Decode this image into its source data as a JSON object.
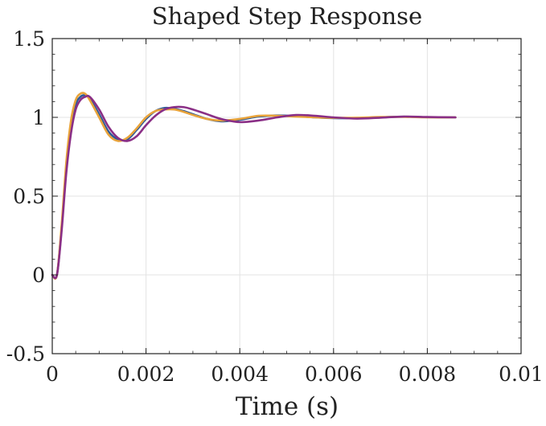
{
  "chart_data": {
    "type": "line",
    "title": "Shaped Step Response",
    "xlabel": "Time (s)",
    "ylabel": "",
    "xlim": [
      0,
      0.01
    ],
    "ylim": [
      -0.5,
      1.5
    ],
    "grid": true,
    "x_ticks": [
      0,
      0.002,
      0.004,
      0.006,
      0.008,
      0.01
    ],
    "x_tick_labels": [
      "0",
      "0.002",
      "0.004",
      "0.006",
      "0.008",
      "0.01"
    ],
    "y_ticks": [
      -0.5,
      0,
      0.5,
      1,
      1.5
    ],
    "y_tick_labels": [
      "-0.5",
      "0",
      "0.5",
      "1",
      "1.5"
    ],
    "series": [
      {
        "color": "#2e5a97",
        "x": [
          0,
          0.0001,
          0.0002,
          0.0003,
          0.0004,
          0.0005,
          0.0006,
          0.0007,
          0.0008,
          0.001,
          0.0012,
          0.0014,
          0.0016,
          0.0018,
          0.002,
          0.0022,
          0.0024,
          0.0026,
          0.0028,
          0.003,
          0.0033,
          0.0036,
          0.004,
          0.0044,
          0.0048,
          0.0052,
          0.0056,
          0.006,
          0.0065,
          0.007,
          0.0075,
          0.008,
          0.0086
        ],
        "y": [
          0,
          0,
          0.3,
          0.68,
          0.93,
          1.08,
          1.13,
          1.14,
          1.12,
          1.02,
          0.91,
          0.86,
          0.86,
          0.92,
          0.99,
          1.04,
          1.06,
          1.055,
          1.04,
          1.02,
          0.99,
          0.975,
          0.985,
          1.005,
          1.012,
          1.008,
          1.0,
          0.995,
          0.995,
          1.0,
          1.004,
          1.001,
          1.0
        ]
      },
      {
        "color": "#e8a33a",
        "x": [
          0,
          0.0001,
          0.0002,
          0.0003,
          0.0004,
          0.0005,
          0.0006,
          0.0007,
          0.0008,
          0.001,
          0.0012,
          0.0014,
          0.0016,
          0.0018,
          0.002,
          0.0022,
          0.0024,
          0.0026,
          0.0028,
          0.003,
          0.0033,
          0.0036,
          0.004,
          0.0044,
          0.0048,
          0.0052,
          0.0056,
          0.006,
          0.0065,
          0.007,
          0.0075,
          0.008,
          0.0086
        ],
        "y": [
          0,
          0,
          0.32,
          0.72,
          0.98,
          1.11,
          1.15,
          1.15,
          1.11,
          1.0,
          0.89,
          0.85,
          0.87,
          0.93,
          1.0,
          1.04,
          1.05,
          1.05,
          1.035,
          1.015,
          0.99,
          0.98,
          0.99,
          1.01,
          1.01,
          1.005,
          1.0,
          0.997,
          0.998,
          1.002,
          1.003,
          1.0,
          1.0
        ]
      },
      {
        "color": "#8a2f86",
        "x": [
          0,
          0.0001,
          0.0002,
          0.0003,
          0.0004,
          0.0005,
          0.0006,
          0.0007,
          0.0008,
          0.001,
          0.0012,
          0.0014,
          0.0016,
          0.0018,
          0.002,
          0.0022,
          0.0024,
          0.0026,
          0.0028,
          0.003,
          0.0033,
          0.0036,
          0.004,
          0.0044,
          0.0048,
          0.0052,
          0.0056,
          0.006,
          0.0065,
          0.007,
          0.0075,
          0.008,
          0.0086
        ],
        "y": [
          0,
          0,
          0.28,
          0.65,
          0.9,
          1.05,
          1.11,
          1.13,
          1.13,
          1.05,
          0.94,
          0.87,
          0.85,
          0.88,
          0.95,
          1.01,
          1.05,
          1.065,
          1.065,
          1.05,
          1.02,
          0.99,
          0.97,
          0.98,
          1.0,
          1.015,
          1.01,
          1.0,
          0.992,
          0.998,
          1.005,
          1.002,
          1.0
        ]
      }
    ]
  }
}
